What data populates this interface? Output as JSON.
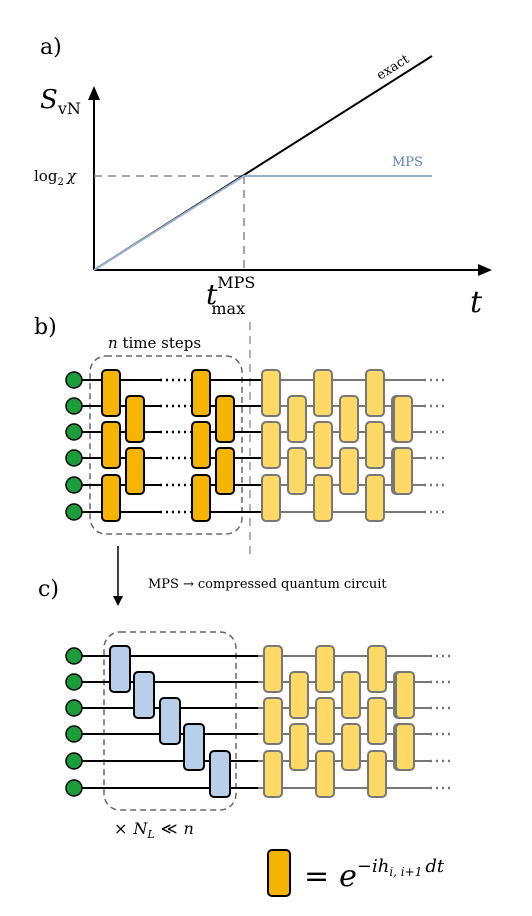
{
  "panels": {
    "a": "a)",
    "b": "b)",
    "c": "c)"
  },
  "plot": {
    "y_axis_label": "S",
    "y_axis_label_sub": "vN",
    "x_axis_label": "t",
    "exact_label": "exact",
    "mps_label": "MPS",
    "log_chi_label": "log",
    "log_chi_sub": "2",
    "log_chi_var": "χ",
    "tmax_label": "t",
    "tmax_sub": "max",
    "tmax_sup": "MPS",
    "colors": {
      "exact": "#000000",
      "mps": "#98b0d4",
      "dashed": "#888888"
    }
  },
  "chart_data": {
    "type": "line",
    "xlabel": "t",
    "ylabel": "S_vN",
    "series": [
      {
        "name": "exact",
        "x": [
          0,
          1,
          2
        ],
        "y": [
          0,
          1,
          2
        ]
      },
      {
        "name": "MPS",
        "x": [
          0,
          1,
          2
        ],
        "y": [
          0,
          1,
          1
        ]
      }
    ],
    "annotations": [
      "log2 χ",
      "t_max^MPS"
    ]
  },
  "circuit_b": {
    "box_label_n": "n",
    "box_label_rest": " time steps",
    "colors": {
      "gate_dark": "#f5b400",
      "gate_light": "#ffd966",
      "qubit": "#1a9e3c"
    }
  },
  "arrow_caption": {
    "left": "MPS",
    "arrow": "→",
    "right": "compressed quantum circuit"
  },
  "circuit_c": {
    "box_label_times": "×",
    "box_label_N": "N",
    "box_label_Nsub": "L",
    "box_label_rel": "≪",
    "box_label_n": "n",
    "colors": {
      "gate_blue": "#b7cfe8"
    }
  },
  "legend": {
    "equals": "=",
    "base": "e",
    "exponent": "−ih",
    "exponent_sub": "i, i+1",
    "exponent_tail": "dt"
  }
}
